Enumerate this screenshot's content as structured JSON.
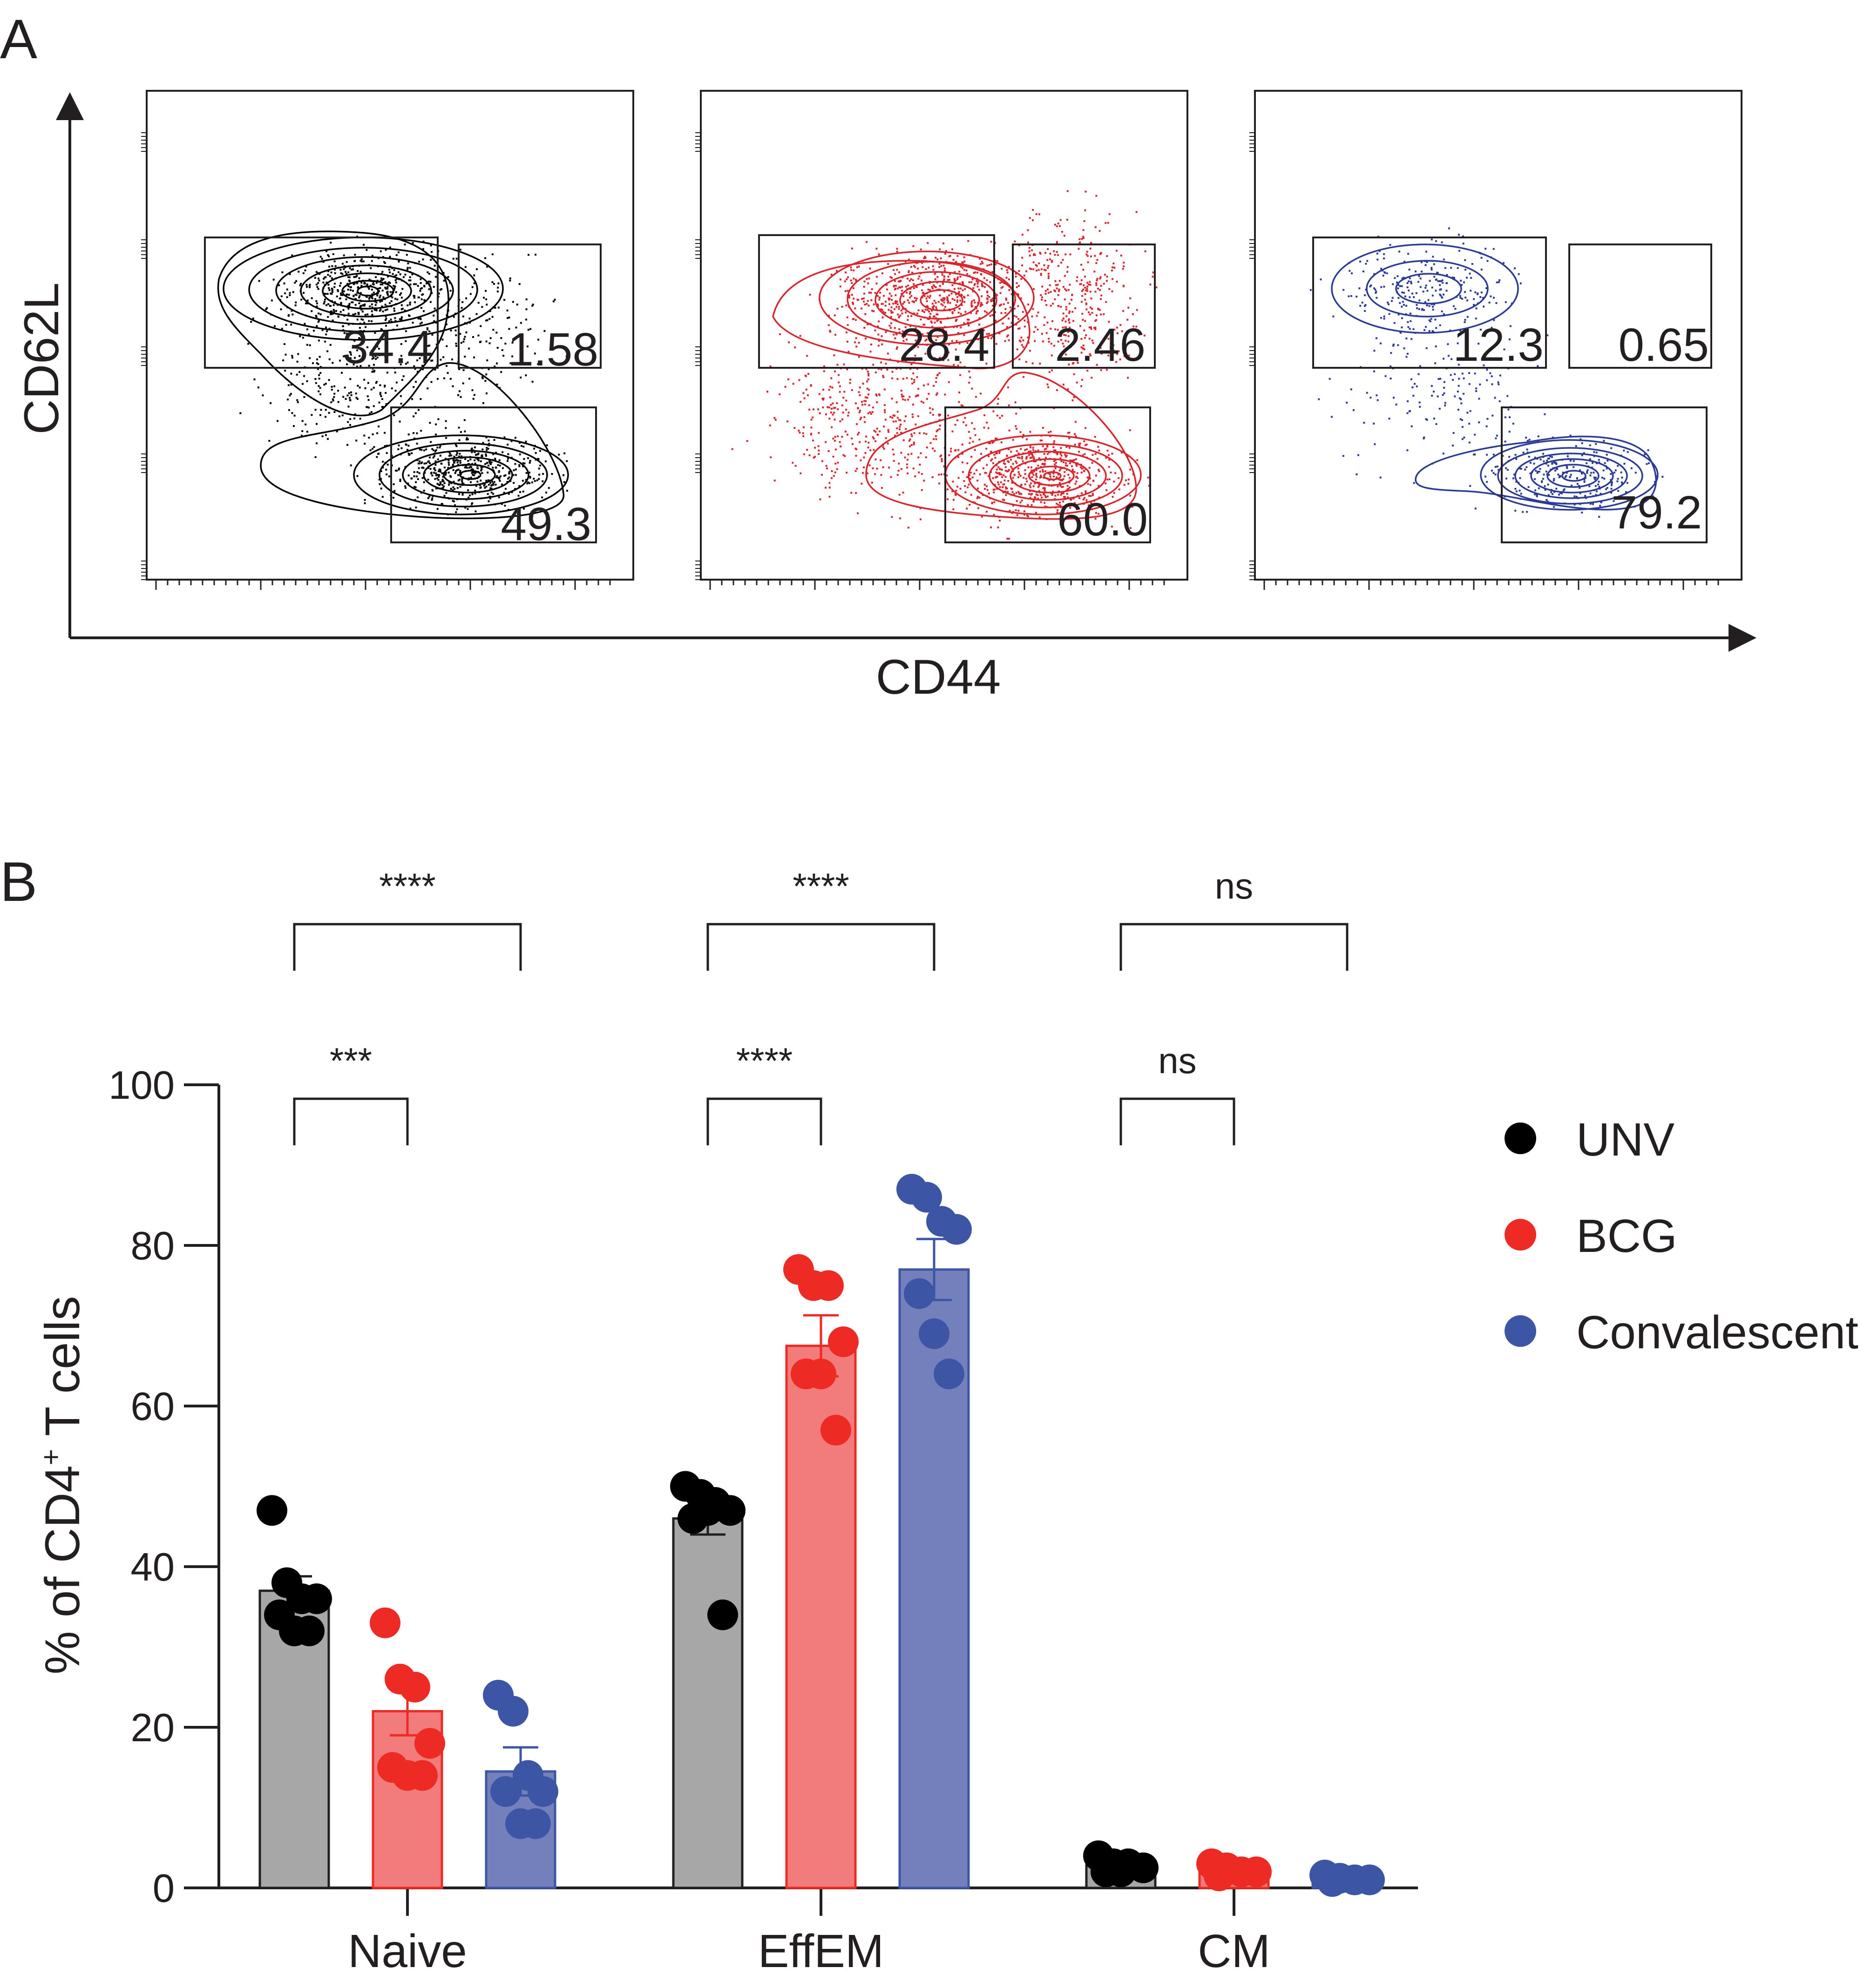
{
  "panel_a": {
    "letter": "A",
    "y_axis_label": "CD62L",
    "x_axis_label": "CD44",
    "plots": [
      {
        "group": "UNV",
        "color": "#000000",
        "gates": {
          "naive": "34.4",
          "cm": "1.58",
          "effem": "49.3"
        }
      },
      {
        "group": "BCG",
        "color": "#d7262e",
        "gates": {
          "naive": "28.4",
          "cm": "2.46",
          "effem": "60.0"
        }
      },
      {
        "group": "Convalescent",
        "color": "#2b3a94",
        "gates": {
          "naive": "12.3",
          "cm": "0.65",
          "effem": "79.2"
        }
      }
    ]
  },
  "panel_b": {
    "letter": "B",
    "legend": [
      {
        "label": "UNV",
        "color": "#000000"
      },
      {
        "label": "BCG",
        "color": "#ee2a24"
      },
      {
        "label": "Convalescent",
        "color": "#3d55a5"
      }
    ],
    "significance": [
      {
        "category": "Naive",
        "comparison": "UNV vs Convalescent",
        "label": "****"
      },
      {
        "category": "Naive",
        "comparison": "UNV vs BCG",
        "label": "***"
      },
      {
        "category": "EffEM",
        "comparison": "UNV vs Convalescent",
        "label": "****"
      },
      {
        "category": "EffEM",
        "comparison": "UNV vs BCG",
        "label": "****"
      },
      {
        "category": "CM",
        "comparison": "UNV vs Convalescent",
        "label": "ns"
      },
      {
        "category": "CM",
        "comparison": "UNV vs BCG",
        "label": "ns"
      }
    ]
  },
  "chart_data": {
    "type": "bar",
    "title": "",
    "xlabel": "",
    "ylabel_main": "% of CD4",
    "ylabel_sup": "+",
    "ylabel_tail": " T cells",
    "ylim": [
      0,
      100
    ],
    "yticks": [
      "0",
      "20",
      "40",
      "60",
      "80",
      "100"
    ],
    "categories": [
      "Naive",
      "EffEM",
      "CM"
    ],
    "series": [
      {
        "name": "UNV",
        "fill": "#a7a7a7",
        "stroke": "#231f20",
        "dot": "#000000",
        "values": [
          37,
          46,
          2.8
        ],
        "sem": [
          1.8,
          2.0,
          0.4
        ],
        "points": [
          [
            47,
            38,
            36,
            36,
            34,
            32,
            32
          ],
          [
            50,
            49,
            48,
            47,
            46,
            47,
            34
          ],
          [
            4,
            3,
            3,
            2.5,
            2,
            2
          ]
        ]
      },
      {
        "name": "BCG",
        "fill": "#f27b7b",
        "stroke": "#ee2a24",
        "dot": "#ee2a24",
        "values": [
          22,
          67.5,
          2.2
        ],
        "sem": [
          3.0,
          3.8,
          0.3
        ],
        "points": [
          [
            33,
            26,
            25,
            18,
            15,
            14,
            14
          ],
          [
            77,
            75,
            75,
            68,
            64,
            64,
            57
          ],
          [
            3,
            2.5,
            2,
            2,
            1.5
          ]
        ]
      },
      {
        "name": "Convalescent",
        "fill": "#7480bc",
        "stroke": "#3d55a5",
        "dot": "#3d55a5",
        "values": [
          14.5,
          77,
          1.2
        ],
        "sem": [
          3.0,
          3.8,
          0.2
        ],
        "points": [
          [
            24,
            22,
            14,
            12,
            12,
            8,
            8
          ],
          [
            87,
            86,
            83,
            82,
            74,
            69,
            64
          ],
          [
            1.6,
            1.2,
            1,
            1,
            0.8
          ]
        ]
      }
    ]
  }
}
